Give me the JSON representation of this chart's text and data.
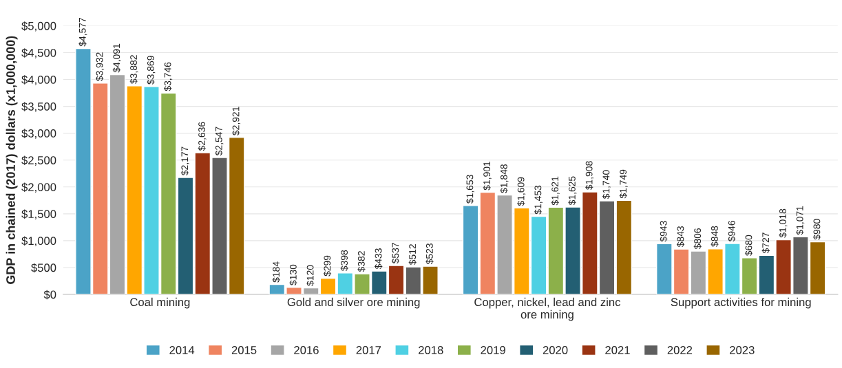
{
  "chart_data": {
    "type": "bar",
    "ylabel": "GDP in chained (2017) dollars (x1,000,000)",
    "categories": [
      "Coal mining",
      "Gold and silver ore mining",
      "Copper, nickel, lead and zinc\nore mining",
      "Support activities for mining"
    ],
    "series": [
      {
        "name": "2014",
        "color": "#4ba3c7",
        "values": [
          4577,
          184,
          1653,
          943
        ],
        "value_labels": [
          "$4,577",
          "$184",
          "$1,653",
          "$943"
        ]
      },
      {
        "name": "2015",
        "color": "#ef8460",
        "values": [
          3932,
          130,
          1901,
          843
        ],
        "value_labels": [
          "$3,932",
          "$130",
          "$1,901",
          "$843"
        ]
      },
      {
        "name": "2016",
        "color": "#a6a6a6",
        "values": [
          4091,
          120,
          1848,
          806
        ],
        "value_labels": [
          "$4,091",
          "$120",
          "$1,848",
          "$806"
        ]
      },
      {
        "name": "2017",
        "color": "#ffa600",
        "values": [
          3882,
          299,
          1609,
          848
        ],
        "value_labels": [
          "$3,882",
          "$299",
          "$1,609",
          "$848"
        ]
      },
      {
        "name": "2018",
        "color": "#4fd0e3",
        "values": [
          3869,
          398,
          1453,
          946
        ],
        "value_labels": [
          "$3,869",
          "$398",
          "$1,453",
          "$946"
        ]
      },
      {
        "name": "2019",
        "color": "#8cb04a",
        "values": [
          3746,
          382,
          1621,
          680
        ],
        "value_labels": [
          "$3,746",
          "$382",
          "$1,621",
          "$680"
        ]
      },
      {
        "name": "2020",
        "color": "#235f73",
        "values": [
          2177,
          433,
          1625,
          727
        ],
        "value_labels": [
          "$2,177",
          "$433",
          "$1,625",
          "$727"
        ]
      },
      {
        "name": "2021",
        "color": "#9a3412",
        "values": [
          2636,
          537,
          1908,
          1018
        ],
        "value_labels": [
          "$2,636",
          "$537",
          "$1,908",
          "$1,018"
        ]
      },
      {
        "name": "2022",
        "color": "#5f5f5f",
        "values": [
          2547,
          512,
          1740,
          1071
        ],
        "value_labels": [
          "$2,547",
          "$512",
          "$1,740",
          "$1,071"
        ]
      },
      {
        "name": "2023",
        "color": "#996600",
        "values": [
          2921,
          523,
          1749,
          980
        ],
        "value_labels": [
          "$2,921",
          "$523",
          "$1,749",
          "$980"
        ]
      }
    ],
    "ylim": [
      0,
      5000
    ],
    "yticks": [
      {
        "value": 0,
        "label": "$0"
      },
      {
        "value": 500,
        "label": "$500"
      },
      {
        "value": 1000,
        "label": "$1,000"
      },
      {
        "value": 1500,
        "label": "$1,500"
      },
      {
        "value": 2000,
        "label": "$2,000"
      },
      {
        "value": 2500,
        "label": "$2,500"
      },
      {
        "value": 3000,
        "label": "$3,000"
      },
      {
        "value": 3500,
        "label": "$3,500"
      },
      {
        "value": 4000,
        "label": "$4,000"
      },
      {
        "value": 4500,
        "label": "$4,500"
      },
      {
        "value": 5000,
        "label": "$5,000"
      }
    ],
    "grid": "y",
    "legend": "bottom"
  }
}
